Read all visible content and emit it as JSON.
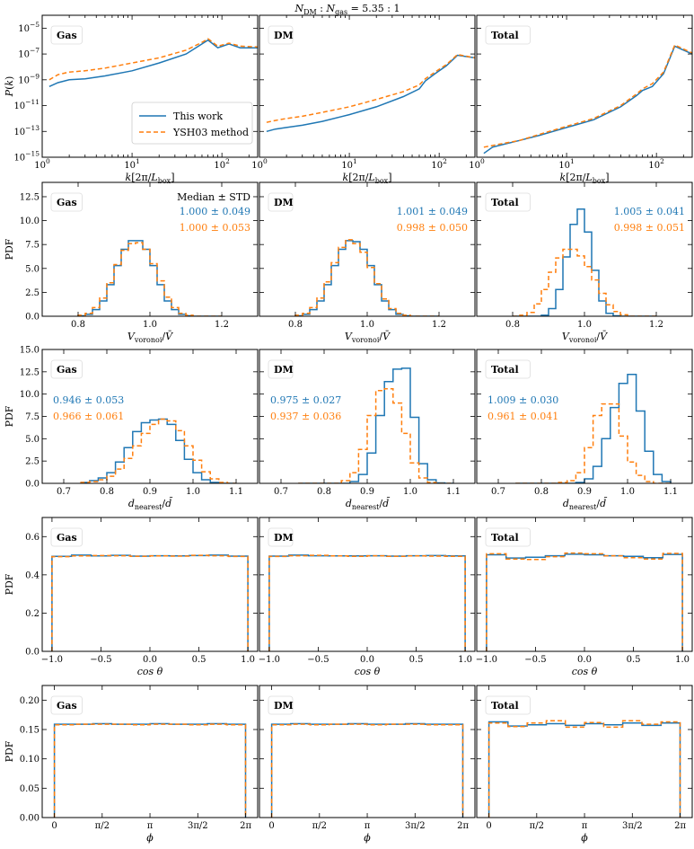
{
  "figure": {
    "suptitle": "N_DM : N_gas = 5.35 : 1"
  },
  "colors": {
    "this_work": "#1f77b4",
    "ysh03": "#ff7f0e"
  },
  "legend": {
    "entries": [
      "This work",
      "YSH03 method"
    ],
    "location": "lower-right of first panel"
  },
  "chart_data": [
    {
      "type": "line",
      "row": "power_spectrum",
      "ylabel": "P(k)",
      "xlabel": "k[2π/L_box]",
      "xscale": "log",
      "yscale": "log",
      "xlim": [
        1,
        250
      ],
      "ylim": [
        1e-15,
        0.0001
      ],
      "x_ticks": [
        "10^0",
        "10^1",
        "10^2"
      ],
      "y_ticks": [
        "10^-15",
        "10^-13",
        "10^-11",
        "10^-9",
        "10^-7",
        "10^-5"
      ],
      "panels": [
        {
          "name": "Gas",
          "x": [
            1.2,
            1.5,
            2,
            3,
            5,
            10,
            20,
            40,
            60,
            70,
            90,
            120,
            160,
            250
          ],
          "series": [
            {
              "name": "This work",
              "values": [
                3e-10,
                6e-10,
                1e-09,
                1.2e-09,
                2e-09,
                5e-09,
                2e-08,
                1e-07,
                6e-07,
                1.2e-06,
                3e-07,
                6e-07,
                3e-07,
                3e-07
              ]
            },
            {
              "name": "YSH03 method",
              "values": [
                1e-09,
                2.5e-09,
                4e-09,
                5e-09,
                8e-09,
                2e-08,
                5e-08,
                2e-07,
                8e-07,
                1.5e-06,
                4e-07,
                7e-07,
                4e-07,
                3.5e-07
              ]
            }
          ]
        },
        {
          "name": "DM",
          "x": [
            1.2,
            1.5,
            2,
            3,
            5,
            10,
            20,
            40,
            60,
            70,
            90,
            120,
            160,
            250
          ],
          "series": [
            {
              "name": "This work",
              "values": [
                1e-13,
                1.5e-13,
                2e-13,
                3e-13,
                6e-13,
                2e-12,
                8e-12,
                5e-11,
                2e-10,
                8e-10,
                3e-09,
                1.2e-08,
                8e-08,
                5e-08
              ]
            },
            {
              "name": "YSH03 method",
              "values": [
                5e-13,
                7e-13,
                1e-12,
                1.5e-12,
                3e-12,
                8e-12,
                3e-11,
                1.2e-10,
                4e-10,
                1.2e-09,
                4e-09,
                1.5e-08,
                9e-08,
                5e-08
              ]
            }
          ]
        },
        {
          "name": "Total",
          "x": [
            1.2,
            1.5,
            2,
            3,
            5,
            10,
            20,
            40,
            60,
            70,
            90,
            120,
            160,
            250
          ],
          "series": [
            {
              "name": "This work",
              "values": [
                2e-15,
                6e-15,
                1e-14,
                2e-14,
                5e-14,
                2e-13,
                8e-13,
                8e-12,
                6e-11,
                1.5e-10,
                3e-10,
                3e-09,
                4e-07,
                1e-07
              ]
            },
            {
              "name": "YSH03 method",
              "values": [
                6e-15,
                8e-15,
                1.2e-14,
                2e-14,
                6e-14,
                2.5e-13,
                1e-12,
                1e-11,
                8e-11,
                2e-10,
                5e-10,
                4e-09,
                5e-07,
                1.2e-07
              ]
            }
          ]
        }
      ]
    },
    {
      "type": "step",
      "row": "voronoi_volume",
      "ylabel": "PDF",
      "xlabel": "V_voronoi/V̄",
      "xlim": [
        0.7,
        1.3
      ],
      "ylim": [
        0,
        14
      ],
      "x_ticks": [
        "0.8",
        "1.0",
        "1.2"
      ],
      "y_ticks": [
        "0.0",
        "2.5",
        "5.0",
        "7.5",
        "10.0",
        "12.5"
      ],
      "stats_header": "Median ± STD",
      "bin_edges": [
        0.8,
        0.82,
        0.84,
        0.86,
        0.88,
        0.9,
        0.92,
        0.94,
        0.96,
        0.98,
        1.0,
        1.02,
        1.04,
        1.06,
        1.08,
        1.1,
        1.12,
        1.14,
        1.16,
        1.18,
        1.2
      ],
      "panels": [
        {
          "name": "Gas",
          "stats": [
            "1.000 ± 0.049",
            "1.000 ± 0.053"
          ],
          "series": [
            {
              "name": "This work",
              "values": [
                0.05,
                0.2,
                0.7,
                1.6,
                3.3,
                5.3,
                7.0,
                7.9,
                7.9,
                7.0,
                5.3,
                3.3,
                1.6,
                0.7,
                0.2,
                0.05,
                0,
                0,
                0,
                0
              ]
            },
            {
              "name": "YSH03 method",
              "values": [
                0.1,
                0.3,
                0.9,
                1.9,
                3.5,
                5.4,
                6.9,
                7.6,
                7.7,
                7.0,
                5.5,
                3.7,
                2.0,
                0.9,
                0.3,
                0.1,
                0,
                0,
                0,
                0
              ]
            }
          ]
        },
        {
          "name": "DM",
          "stats": [
            "1.001 ± 0.049",
            "0.998 ± 0.050"
          ],
          "series": [
            {
              "name": "This work",
              "values": [
                0.05,
                0.2,
                0.7,
                1.6,
                3.3,
                5.3,
                7.0,
                7.9,
                7.8,
                7.0,
                5.3,
                3.3,
                1.6,
                0.7,
                0.2,
                0.05,
                0,
                0,
                0,
                0
              ]
            },
            {
              "name": "YSH03 method",
              "values": [
                0.1,
                0.3,
                0.9,
                1.9,
                3.6,
                5.6,
                7.2,
                8.0,
                7.6,
                6.7,
                5.1,
                3.4,
                1.8,
                0.8,
                0.3,
                0.1,
                0,
                0,
                0,
                0
              ]
            }
          ]
        },
        {
          "name": "Total",
          "stats": [
            "1.005 ± 0.041",
            "0.998 ± 0.051"
          ],
          "series": [
            {
              "name": "This work",
              "values": [
                0,
                0,
                0,
                0,
                0.1,
                0.8,
                2.8,
                6.2,
                9.6,
                11.2,
                8.8,
                4.8,
                1.6,
                0.3,
                0.05,
                0,
                0,
                0,
                0,
                0
              ]
            },
            {
              "name": "YSH03 method",
              "values": [
                0,
                0.1,
                0.4,
                1.3,
                2.8,
                4.6,
                6.1,
                7.0,
                7.0,
                6.3,
                5.2,
                3.8,
                2.4,
                1.2,
                0.5,
                0.15,
                0,
                0,
                0,
                0
              ]
            }
          ]
        }
      ]
    },
    {
      "type": "step",
      "row": "nearest_distance",
      "ylabel": "PDF",
      "xlabel": "d_nearest/d̄",
      "xlim": [
        0.65,
        1.15
      ],
      "ylim": [
        0,
        15
      ],
      "x_ticks": [
        "0.7",
        "0.8",
        "0.9",
        "1.0",
        "1.1"
      ],
      "y_ticks": [
        "0.0",
        "2.5",
        "5.0",
        "7.5",
        "10.0",
        "12.5",
        "15.0"
      ],
      "bin_edges": [
        0.74,
        0.76,
        0.78,
        0.8,
        0.82,
        0.84,
        0.86,
        0.88,
        0.9,
        0.92,
        0.94,
        0.96,
        0.98,
        1.0,
        1.02,
        1.04,
        1.06,
        1.08,
        1.1
      ],
      "panels": [
        {
          "name": "Gas",
          "stats": [
            "0.946 ± 0.053",
            "0.966 ± 0.061"
          ],
          "series": [
            {
              "name": "This work",
              "values": [
                0.1,
                0.3,
                0.6,
                1.2,
                2.4,
                4.0,
                5.8,
                6.8,
                7.1,
                7.2,
                6.6,
                4.8,
                2.7,
                1.2,
                0.4,
                0.1,
                0,
                0
              ]
            },
            {
              "name": "YSH03 method",
              "values": [
                0.1,
                0.2,
                0.4,
                0.8,
                1.6,
                2.8,
                4.2,
                5.6,
                6.6,
                7.2,
                7.0,
                5.9,
                4.2,
                2.6,
                1.3,
                0.5,
                0.1,
                0
              ]
            }
          ]
        },
        {
          "name": "DM",
          "stats": [
            "0.975 ± 0.027",
            "0.937 ± 0.036"
          ],
          "series": [
            {
              "name": "This work",
              "values": [
                0,
                0,
                0,
                0,
                0,
                0,
                0.2,
                1.0,
                3.4,
                7.6,
                11.4,
                12.8,
                12.9,
                7.4,
                2.2,
                0.4,
                0.05,
                0
              ]
            },
            {
              "name": "YSH03 method",
              "values": [
                0,
                0,
                0,
                0,
                0,
                0.3,
                1.2,
                3.8,
                7.6,
                10.4,
                10.6,
                9.0,
                5.6,
                2.3,
                0.6,
                0.1,
                0,
                0
              ]
            }
          ]
        },
        {
          "name": "Total",
          "stats": [
            "1.009 ± 0.030",
            "0.961 ± 0.041"
          ],
          "series": [
            {
              "name": "This work",
              "values": [
                0,
                0,
                0,
                0,
                0,
                0,
                0,
                0.1,
                0.5,
                1.9,
                5.0,
                8.5,
                11.2,
                12.2,
                8.1,
                3.6,
                1.0,
                0.2
              ]
            },
            {
              "name": "YSH03 method",
              "values": [
                0,
                0,
                0,
                0,
                0,
                0.1,
                0.3,
                1.2,
                4.0,
                7.6,
                8.9,
                8.9,
                5.3,
                2.4,
                0.9,
                0.2,
                0,
                0
              ]
            }
          ]
        }
      ]
    },
    {
      "type": "step",
      "row": "cos_theta",
      "ylabel": "PDF",
      "xlabel": "cos θ",
      "xlim": [
        -1.1,
        1.1
      ],
      "ylim": [
        0,
        0.7
      ],
      "x_ticks": [
        "−1.0",
        "−0.5",
        "0.0",
        "0.5",
        "1.0"
      ],
      "y_ticks": [
        "0.0",
        "0.2",
        "0.4",
        "0.6"
      ],
      "bin_edges": [
        -1.0,
        -0.8,
        -0.6,
        -0.4,
        -0.2,
        0.0,
        0.2,
        0.4,
        0.6,
        0.8,
        1.0
      ],
      "panels": [
        {
          "name": "Gas",
          "series": [
            {
              "name": "This work",
              "values": [
                0.497,
                0.503,
                0.499,
                0.502,
                0.498,
                0.5,
                0.499,
                0.501,
                0.503,
                0.498
              ]
            },
            {
              "name": "YSH03 method",
              "values": [
                0.495,
                0.499,
                0.501,
                0.5,
                0.497,
                0.499,
                0.498,
                0.502,
                0.5,
                0.496
              ]
            }
          ]
        },
        {
          "name": "DM",
          "series": [
            {
              "name": "This work",
              "values": [
                0.498,
                0.503,
                0.5,
                0.499,
                0.499,
                0.5,
                0.498,
                0.5,
                0.501,
                0.499
              ]
            },
            {
              "name": "YSH03 method",
              "values": [
                0.496,
                0.5,
                0.502,
                0.499,
                0.497,
                0.5,
                0.497,
                0.499,
                0.498,
                0.497
              ]
            }
          ]
        },
        {
          "name": "Total",
          "series": [
            {
              "name": "This work",
              "values": [
                0.505,
                0.488,
                0.492,
                0.5,
                0.508,
                0.505,
                0.5,
                0.497,
                0.49,
                0.507
              ]
            },
            {
              "name": "YSH03 method",
              "values": [
                0.51,
                0.483,
                0.48,
                0.495,
                0.514,
                0.51,
                0.5,
                0.49,
                0.483,
                0.512
              ]
            }
          ]
        }
      ]
    },
    {
      "type": "step",
      "row": "phi",
      "ylabel": "PDF",
      "xlabel": "ϕ",
      "xlim": [
        -0.4,
        6.68
      ],
      "ylim": [
        0,
        0.225
      ],
      "x_ticks": [
        "0",
        "π/2",
        "π",
        "3π/2",
        "2π"
      ],
      "y_ticks": [
        "0.00",
        "0.05",
        "0.10",
        "0.15",
        "0.20"
      ],
      "bin_edges": [
        0,
        0.628,
        1.257,
        1.885,
        2.513,
        3.142,
        3.77,
        4.398,
        5.027,
        5.655,
        6.283
      ],
      "panels": [
        {
          "name": "Gas",
          "series": [
            {
              "name": "This work",
              "values": [
                0.159,
                0.159,
                0.16,
                0.159,
                0.159,
                0.16,
                0.159,
                0.159,
                0.16,
                0.159
              ]
            },
            {
              "name": "YSH03 method",
              "values": [
                0.158,
                0.159,
                0.159,
                0.159,
                0.158,
                0.159,
                0.159,
                0.158,
                0.159,
                0.158
              ]
            }
          ]
        },
        {
          "name": "DM",
          "series": [
            {
              "name": "This work",
              "values": [
                0.159,
                0.16,
                0.159,
                0.159,
                0.16,
                0.159,
                0.159,
                0.16,
                0.159,
                0.159
              ]
            },
            {
              "name": "YSH03 method",
              "values": [
                0.158,
                0.159,
                0.158,
                0.159,
                0.159,
                0.158,
                0.159,
                0.159,
                0.158,
                0.158
              ]
            }
          ]
        },
        {
          "name": "Total",
          "series": [
            {
              "name": "This work",
              "values": [
                0.163,
                0.156,
                0.158,
                0.16,
                0.157,
                0.16,
                0.158,
                0.161,
                0.157,
                0.161
              ]
            },
            {
              "name": "YSH03 method",
              "values": [
                0.161,
                0.155,
                0.161,
                0.165,
                0.154,
                0.162,
                0.154,
                0.165,
                0.159,
                0.163
              ]
            }
          ]
        }
      ]
    }
  ]
}
